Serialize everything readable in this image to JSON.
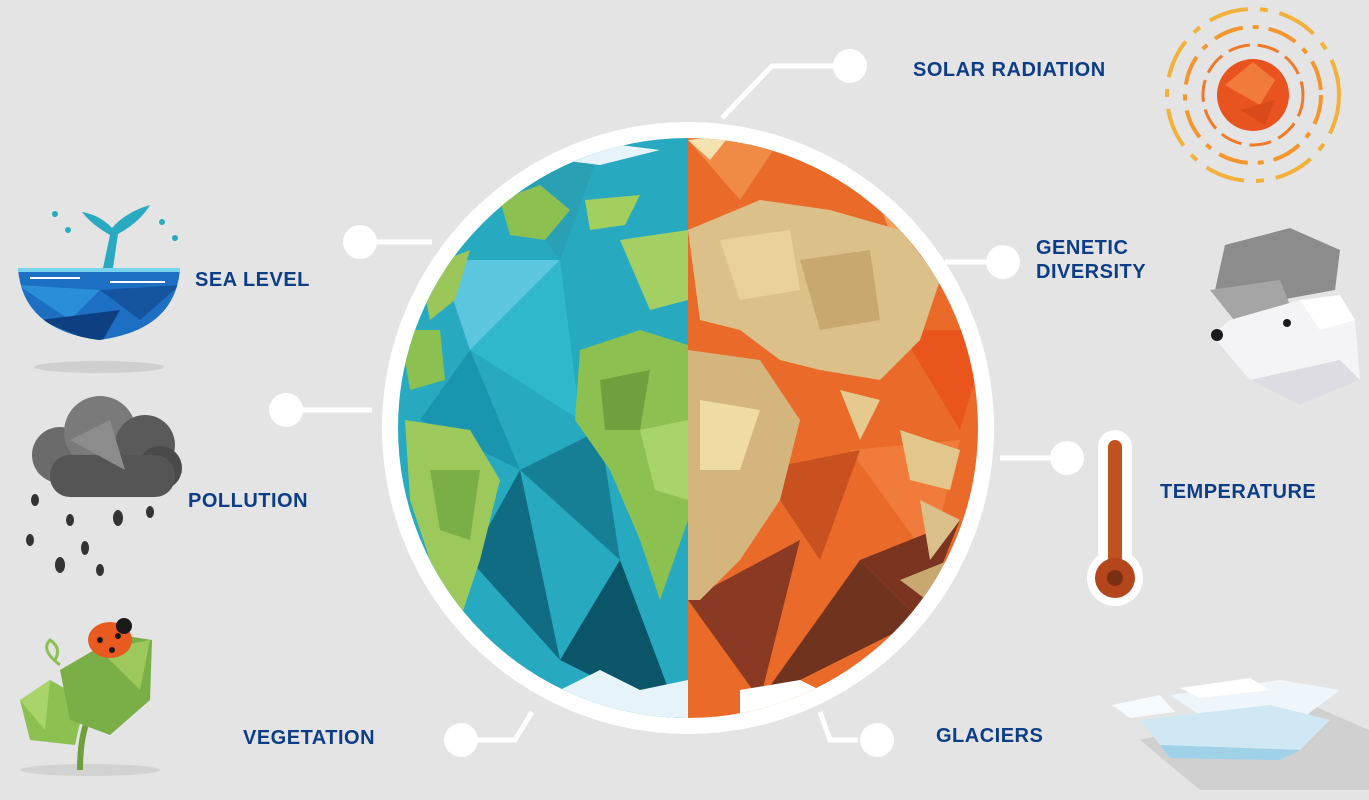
{
  "labels": {
    "solar_radiation": "SOLAR RADIATION",
    "genetic_diversity_line1": "GENETIC",
    "genetic_diversity_line2": "DIVERSITY",
    "temperature": "TEMPERATURE",
    "glaciers": "GLACIERS",
    "sea_level": "SEA LEVEL",
    "pollution": "POLLUTION",
    "vegetation": "VEGETATION"
  },
  "colors": {
    "background": "#e4e4e4",
    "label_text": "#0d3d87",
    "ocean": "#1f9cb4",
    "land_green": "#8cc152",
    "hot_orange": "#e85a1f",
    "sand": "#dcc08a",
    "connector": "#ffffff"
  },
  "icons": [
    "sun-icon",
    "polar-bear-icon",
    "thermometer-icon",
    "ice-glacier-icon",
    "whale-tail-sea-icon",
    "rain-cloud-icon",
    "plant-ladybug-icon",
    "earth-globe"
  ]
}
